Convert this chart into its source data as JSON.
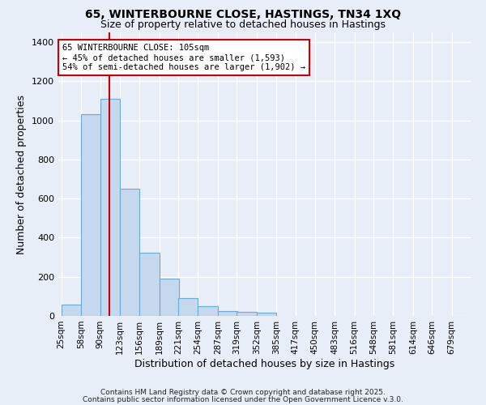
{
  "title_line1": "65, WINTERBOURNE CLOSE, HASTINGS, TN34 1XQ",
  "title_line2": "Size of property relative to detached houses in Hastings",
  "xlabel": "Distribution of detached houses by size in Hastings",
  "ylabel": "Number of detached properties",
  "bar_color": "#c5d8ee",
  "bar_edge_color": "#6aaad4",
  "background_color": "#e8eef8",
  "grid_color": "#ffffff",
  "annotation_text": "65 WINTERBOURNE CLOSE: 105sqm\n← 45% of detached houses are smaller (1,593)\n54% of semi-detached houses are larger (1,902) →",
  "red_line_x": 105,
  "bin_edges": [
    25,
    58,
    90,
    123,
    156,
    189,
    221,
    254,
    287,
    319,
    352,
    385,
    417,
    450,
    483,
    516,
    548,
    581,
    614,
    646,
    679
  ],
  "bin_labels": [
    "25sqm",
    "58sqm",
    "90sqm",
    "123sqm",
    "156sqm",
    "189sqm",
    "221sqm",
    "254sqm",
    "287sqm",
    "319sqm",
    "352sqm",
    "385sqm",
    "417sqm",
    "450sqm",
    "483sqm",
    "516sqm",
    "548sqm",
    "581sqm",
    "614sqm",
    "646sqm",
    "679sqm"
  ],
  "bar_heights": [
    60,
    1030,
    1110,
    650,
    325,
    190,
    90,
    50,
    25,
    20,
    15,
    0,
    0,
    0,
    0,
    0,
    0,
    0,
    0,
    0
  ],
  "ylim": [
    0,
    1450
  ],
  "yticks": [
    0,
    200,
    400,
    600,
    800,
    1000,
    1200,
    1400
  ],
  "footnote1": "Contains HM Land Registry data © Crown copyright and database right 2025.",
  "footnote2": "Contains public sector information licensed under the Open Government Licence v.3.0."
}
